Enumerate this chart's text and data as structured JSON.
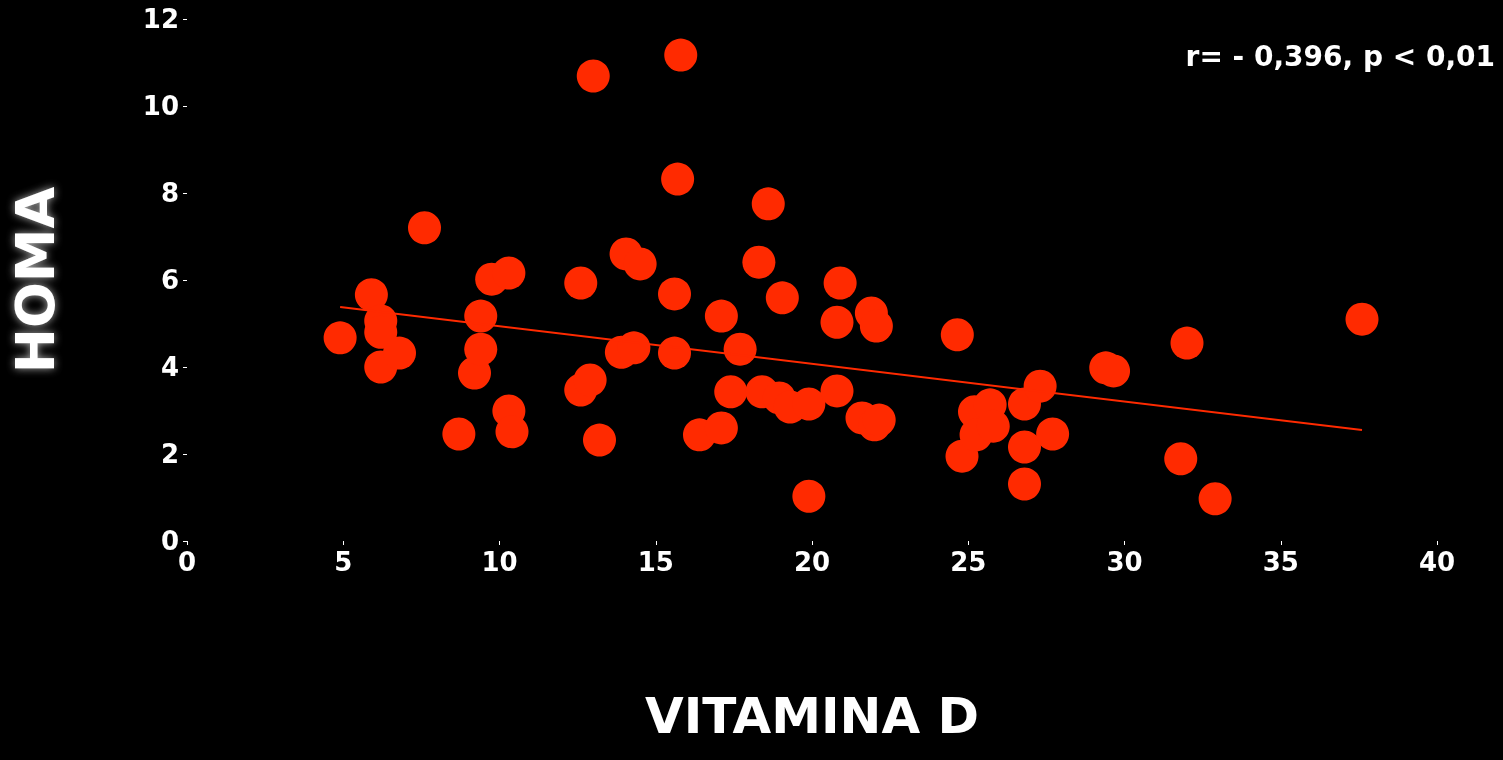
{
  "chart_data": {
    "type": "scatter",
    "xlabel": "VITAMINA D",
    "ylabel": "HOMA",
    "annotations": [
      "r= - 0,396, p < 0,01"
    ],
    "xlim": [
      0,
      40
    ],
    "xticks": [
      0,
      5,
      10,
      15,
      20,
      25,
      30,
      35,
      40
    ],
    "ylim": [
      0,
      12
    ],
    "yticks": [
      0,
      2,
      4,
      6,
      8,
      10,
      12
    ],
    "grid": false,
    "marker": "circle",
    "series": [
      {
        "color": "#ff2a00",
        "x": [
          4.9,
          5.9,
          6.2,
          6.2,
          6.2,
          6.8,
          7.6,
          8.7,
          9.2,
          9.4,
          9.4,
          9.75,
          10.3,
          10.3,
          10.4,
          12.6,
          12.6,
          12.9,
          13.0,
          13.2,
          13.9,
          14.05,
          14.3,
          14.5,
          15.6,
          15.6,
          15.7,
          15.8,
          16.4,
          17.1,
          17.1,
          17.4,
          17.7,
          18.3,
          18.4,
          18.6,
          18.95,
          19.05,
          19.3,
          19.9,
          19.9,
          20.8,
          20.8,
          20.9,
          21.6,
          21.9,
          22.0,
          22.06,
          22.15,
          24.65,
          24.8,
          25.2,
          25.25,
          25.7,
          25.8,
          26.8,
          26.8,
          26.8,
          27.3,
          27.7,
          29.4,
          29.65,
          32.0,
          31.8,
          32.9,
          37.6
        ],
        "values": [
          4.67,
          5.66,
          5.06,
          4.8,
          4.0,
          4.32,
          7.2,
          2.46,
          3.86,
          5.17,
          4.41,
          6.02,
          6.16,
          2.99,
          2.51,
          5.93,
          3.47,
          3.7,
          10.69,
          2.32,
          4.34,
          6.6,
          4.44,
          6.37,
          5.68,
          4.32,
          8.32,
          11.17,
          2.44,
          5.17,
          2.6,
          3.43,
          4.41,
          6.41,
          3.43,
          7.75,
          3.29,
          5.59,
          3.08,
          3.15,
          1.03,
          3.45,
          5.03,
          5.93,
          2.83,
          5.24,
          2.67,
          4.94,
          2.78,
          4.74,
          1.95,
          2.97,
          2.44,
          3.13,
          2.64,
          3.15,
          2.16,
          1.31,
          3.56,
          2.46,
          3.98,
          3.91,
          4.55,
          1.89,
          0.97,
          5.1
        ]
      },
      {
        "type": "line",
        "color": "#ff2a00",
        "marker": "none",
        "line_style": "solid",
        "x": [
          4.9,
          37.6
        ],
        "values": [
          5.38,
          2.55
        ]
      }
    ]
  }
}
